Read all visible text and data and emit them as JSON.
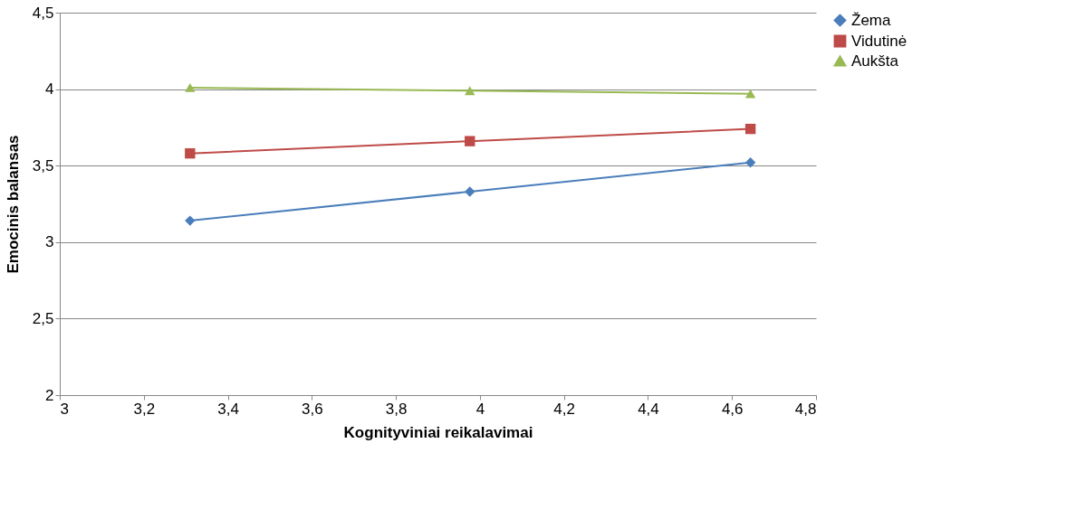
{
  "chart_data": {
    "type": "line",
    "xlabel": "Kognityviniai reikalavimai",
    "ylabel": "Emocinis balansas",
    "x": [
      3.31,
      3.976,
      4.644
    ],
    "series": [
      {
        "name": "Žema",
        "color": "#4a7ebb",
        "marker": "diamond",
        "values": [
          3.14,
          3.33,
          3.52
        ]
      },
      {
        "name": "Vidutinė",
        "color": "#be4b48",
        "marker": "square",
        "values": [
          3.58,
          3.66,
          3.74
        ]
      },
      {
        "name": "Aukšta",
        "color": "#98b954",
        "marker": "triangle",
        "values": [
          4.01,
          3.99,
          3.97
        ]
      }
    ],
    "xlim": [
      3,
      4.8
    ],
    "xticks": [
      3,
      {
        "value": 3.2,
        "label": "3,2"
      },
      {
        "value": 3.4,
        "label": "3,4"
      },
      {
        "value": 3.6,
        "label": "3,6"
      },
      {
        "value": 3.8,
        "label": "3,8"
      },
      4,
      {
        "value": 4.2,
        "label": "4,2"
      },
      {
        "value": 4.4,
        "label": "4,4"
      },
      {
        "value": 4.6,
        "label": "4,6"
      },
      {
        "value": 4.8,
        "label": "4,8"
      }
    ],
    "ylim": [
      2,
      4.5
    ],
    "yticks": [
      2,
      {
        "value": 2.5,
        "label": "2,5"
      },
      3,
      {
        "value": 3.5,
        "label": "3,5"
      },
      4,
      {
        "value": 4.5,
        "label": "4,5"
      }
    ],
    "grid": "y",
    "legend": "right",
    "line_style": "solid"
  }
}
